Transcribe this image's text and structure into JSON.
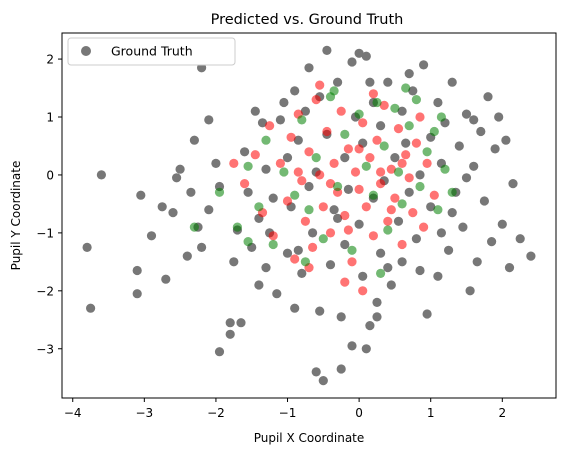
{
  "chart_data": {
    "type": "scatter",
    "title": "Predicted vs. Ground Truth",
    "xlabel": "Pupil X Coordinate",
    "ylabel": "Pupil Y Coordinate",
    "xlim": [
      -4.15,
      2.75
    ],
    "ylim": [
      -3.85,
      2.45
    ],
    "x_ticks": [
      -4,
      -3,
      -2,
      -1,
      0,
      1,
      2
    ],
    "y_ticks": [
      -3,
      -2,
      -1,
      0,
      1,
      2
    ],
    "grid": false,
    "legend": {
      "placement": "top-left",
      "entries": [
        "Ground Truth"
      ]
    },
    "series": [
      {
        "name": "Ground Truth",
        "color": "#777777",
        "points": [
          [
            -3.75,
            -2.3
          ],
          [
            -3.8,
            -1.25
          ],
          [
            -3.6,
            0.0
          ],
          [
            -3.1,
            -2.05
          ],
          [
            -3.1,
            -1.65
          ],
          [
            -3.05,
            -0.35
          ],
          [
            -2.9,
            -1.05
          ],
          [
            -2.7,
            -1.8
          ],
          [
            -2.75,
            -0.55
          ],
          [
            -2.6,
            -0.65
          ],
          [
            -2.5,
            0.1
          ],
          [
            -2.55,
            -0.05
          ],
          [
            -2.35,
            -0.3
          ],
          [
            -2.25,
            -0.9
          ],
          [
            -2.2,
            -1.25
          ],
          [
            -2.4,
            -1.4
          ],
          [
            -2.2,
            1.85
          ],
          [
            -2.1,
            0.95
          ],
          [
            -2.0,
            0.2
          ],
          [
            -1.95,
            -0.2
          ],
          [
            -1.95,
            -3.05
          ],
          [
            -1.8,
            -2.55
          ],
          [
            -1.8,
            -2.75
          ],
          [
            -1.75,
            -1.5
          ],
          [
            -1.65,
            -2.55
          ],
          [
            -1.6,
            0.4
          ],
          [
            -1.5,
            -1.25
          ],
          [
            -1.45,
            1.1
          ],
          [
            -1.4,
            -0.75
          ],
          [
            -1.4,
            -1.9
          ],
          [
            -1.35,
            0.9
          ],
          [
            -1.3,
            0.1
          ],
          [
            -1.25,
            -1.0
          ],
          [
            -1.2,
            -0.4
          ],
          [
            -1.15,
            -2.05
          ],
          [
            -1.1,
            0.95
          ],
          [
            -1.0,
            0.3
          ],
          [
            -1.0,
            -1.35
          ],
          [
            -0.95,
            -0.55
          ],
          [
            -0.9,
            1.45
          ],
          [
            -0.9,
            -2.3
          ],
          [
            -0.85,
            0.6
          ],
          [
            -0.8,
            -1.7
          ],
          [
            -0.75,
            1.1
          ],
          [
            -0.7,
            -0.2
          ],
          [
            -0.7,
            1.85
          ],
          [
            -0.65,
            -1.0
          ],
          [
            -0.6,
            0.05
          ],
          [
            -0.55,
            1.35
          ],
          [
            -0.55,
            -2.35
          ],
          [
            -0.5,
            -3.55
          ],
          [
            -0.45,
            2.15
          ],
          [
            -0.45,
            0.7
          ],
          [
            -0.4,
            -1.55
          ],
          [
            -0.35,
            -0.6
          ],
          [
            -0.3,
            1.6
          ],
          [
            -0.25,
            -2.45
          ],
          [
            -0.2,
            0.3
          ],
          [
            -0.2,
            -1.2
          ],
          [
            -0.15,
            -0.25
          ],
          [
            -0.1,
            1.95
          ],
          [
            -0.1,
            -2.95
          ],
          [
            -0.05,
            1.0
          ],
          [
            0.0,
            2.1
          ],
          [
            0.0,
            -0.85
          ],
          [
            0.05,
            -1.75
          ],
          [
            0.05,
            0.55
          ],
          [
            0.1,
            -3.0
          ],
          [
            0.1,
            2.05
          ],
          [
            0.15,
            -2.6
          ],
          [
            0.2,
            -0.4
          ],
          [
            0.2,
            1.25
          ],
          [
            0.25,
            -2.2
          ],
          [
            0.3,
            -1.35
          ],
          [
            0.3,
            0.85
          ],
          [
            0.35,
            -0.1
          ],
          [
            0.4,
            1.6
          ],
          [
            0.45,
            -1.9
          ],
          [
            0.5,
            0.3
          ],
          [
            0.55,
            -0.8
          ],
          [
            0.6,
            1.1
          ],
          [
            0.6,
            -1.5
          ],
          [
            0.65,
            0.55
          ],
          [
            0.7,
            -0.3
          ],
          [
            0.75,
            1.45
          ],
          [
            0.8,
            -1.1
          ],
          [
            0.85,
            0.0
          ],
          [
            0.9,
            1.9
          ],
          [
            0.95,
            -2.4
          ],
          [
            1.0,
            0.65
          ],
          [
            1.0,
            -0.55
          ],
          [
            1.1,
            1.25
          ],
          [
            1.1,
            -1.75
          ],
          [
            1.15,
            0.2
          ],
          [
            1.2,
            0.9
          ],
          [
            1.25,
            -1.3
          ],
          [
            1.3,
            1.6
          ],
          [
            1.35,
            -0.3
          ],
          [
            1.4,
            0.5
          ],
          [
            1.45,
            -0.9
          ],
          [
            1.5,
            1.05
          ],
          [
            1.55,
            -2.0
          ],
          [
            1.6,
            0.15
          ],
          [
            1.65,
            -1.5
          ],
          [
            1.7,
            0.75
          ],
          [
            1.75,
            -0.45
          ],
          [
            1.8,
            1.35
          ],
          [
            1.85,
            -1.15
          ],
          [
            1.9,
            0.45
          ],
          [
            2.0,
            -0.85
          ],
          [
            2.05,
            0.6
          ],
          [
            2.1,
            -1.6
          ],
          [
            2.15,
            -0.15
          ],
          [
            2.25,
            -1.1
          ],
          [
            2.4,
            -1.4
          ],
          [
            -0.6,
            -3.4
          ],
          [
            -0.25,
            -3.35
          ],
          [
            0.25,
            -2.45
          ],
          [
            -2.3,
            0.6
          ],
          [
            1.95,
            1.0
          ],
          [
            -1.3,
            -1.6
          ],
          [
            1.5,
            -0.05
          ],
          [
            -2.1,
            -0.6
          ],
          [
            0.7,
            1.75
          ],
          [
            -0.85,
            -1.3
          ],
          [
            1.15,
            -1.0
          ],
          [
            -1.55,
            -0.3
          ],
          [
            0.4,
            -1.6
          ],
          [
            -0.3,
            -0.75
          ],
          [
            0.85,
            -1.65
          ],
          [
            -1.05,
            1.25
          ],
          [
            1.6,
            0.95
          ],
          [
            -1.7,
            -0.95
          ],
          [
            0.15,
            1.6
          ],
          [
            1.3,
            -0.65
          ]
        ]
      },
      {
        "name": "",
        "color": "#ff0000",
        "points": [
          [
            -1.6,
            -0.15
          ],
          [
            -1.45,
            0.35
          ],
          [
            -1.35,
            -0.65
          ],
          [
            -1.25,
            0.85
          ],
          [
            -1.2,
            -1.05
          ],
          [
            -1.1,
            0.2
          ],
          [
            -1.0,
            -0.45
          ],
          [
            -0.95,
            0.65
          ],
          [
            -0.9,
            -1.45
          ],
          [
            -0.85,
            1.05
          ],
          [
            -0.8,
            -0.1
          ],
          [
            -0.75,
            -0.8
          ],
          [
            -0.7,
            0.4
          ],
          [
            -0.65,
            -1.25
          ],
          [
            -0.6,
            1.3
          ],
          [
            -0.55,
            0.0
          ],
          [
            -0.5,
            -0.55
          ],
          [
            -0.45,
            0.75
          ],
          [
            -0.4,
            -1.0
          ],
          [
            -0.35,
            0.2
          ],
          [
            -0.3,
            -0.3
          ],
          [
            -0.25,
            1.1
          ],
          [
            -0.2,
            -0.7
          ],
          [
            -0.15,
            0.45
          ],
          [
            -0.1,
            -1.5
          ],
          [
            -0.05,
            0.05
          ],
          [
            0.0,
            -0.25
          ],
          [
            0.05,
            0.9
          ],
          [
            0.1,
            -0.55
          ],
          [
            0.15,
            0.3
          ],
          [
            0.2,
            -1.05
          ],
          [
            0.25,
            0.6
          ],
          [
            0.3,
            -0.15
          ],
          [
            0.35,
            1.2
          ],
          [
            0.4,
            -0.8
          ],
          [
            0.45,
            0.1
          ],
          [
            0.5,
            -0.4
          ],
          [
            0.55,
            0.8
          ],
          [
            0.6,
            -1.2
          ],
          [
            0.65,
            0.35
          ],
          [
            0.7,
            -0.05
          ],
          [
            0.75,
            -0.65
          ],
          [
            0.8,
            0.55
          ],
          [
            0.85,
            1.0
          ],
          [
            0.9,
            -0.9
          ],
          [
            0.95,
            0.2
          ],
          [
            -0.7,
            -1.6
          ],
          [
            -0.2,
            -1.85
          ],
          [
            0.05,
            -2.0
          ],
          [
            -0.55,
            1.55
          ],
          [
            0.2,
            1.4
          ],
          [
            -1.75,
            0.2
          ],
          [
            1.05,
            -0.35
          ],
          [
            -0.4,
            -0.15
          ],
          [
            0.0,
            0.45
          ],
          [
            0.45,
            -0.6
          ],
          [
            -0.15,
            -0.95
          ],
          [
            0.3,
            0.05
          ],
          [
            -0.85,
            0.05
          ],
          [
            0.6,
            0.2
          ]
        ]
      },
      {
        "name": "",
        "color": "#008000",
        "points": [
          [
            -1.95,
            -0.3
          ],
          [
            -1.7,
            -0.9
          ],
          [
            -1.55,
            0.15
          ],
          [
            -1.4,
            -0.55
          ],
          [
            -1.3,
            0.6
          ],
          [
            -1.2,
            -1.2
          ],
          [
            -1.05,
            0.05
          ],
          [
            -0.9,
            -0.35
          ],
          [
            -0.8,
            0.95
          ],
          [
            -0.7,
            -0.6
          ],
          [
            -0.6,
            0.3
          ],
          [
            -0.5,
            -1.1
          ],
          [
            -0.4,
            1.35
          ],
          [
            -0.3,
            -0.2
          ],
          [
            -0.2,
            0.7
          ],
          [
            -0.1,
            -1.3
          ],
          [
            0.0,
            1.05
          ],
          [
            0.1,
            0.15
          ],
          [
            0.2,
            -0.35
          ],
          [
            0.25,
            1.25
          ],
          [
            0.35,
            0.5
          ],
          [
            0.4,
            -0.95
          ],
          [
            0.5,
            1.15
          ],
          [
            0.55,
            0.05
          ],
          [
            0.6,
            -0.5
          ],
          [
            0.7,
            0.85
          ],
          [
            0.8,
            1.3
          ],
          [
            0.85,
            -0.2
          ],
          [
            0.95,
            0.4
          ],
          [
            1.05,
            0.75
          ],
          [
            1.1,
            -0.6
          ],
          [
            1.2,
            0.1
          ],
          [
            1.15,
            1.0
          ],
          [
            -2.3,
            -0.9
          ],
          [
            -1.55,
            -1.15
          ],
          [
            -0.75,
            -1.5
          ],
          [
            0.3,
            -1.7
          ],
          [
            1.3,
            -0.3
          ],
          [
            0.65,
            1.5
          ],
          [
            -0.35,
            1.45
          ]
        ]
      }
    ]
  }
}
